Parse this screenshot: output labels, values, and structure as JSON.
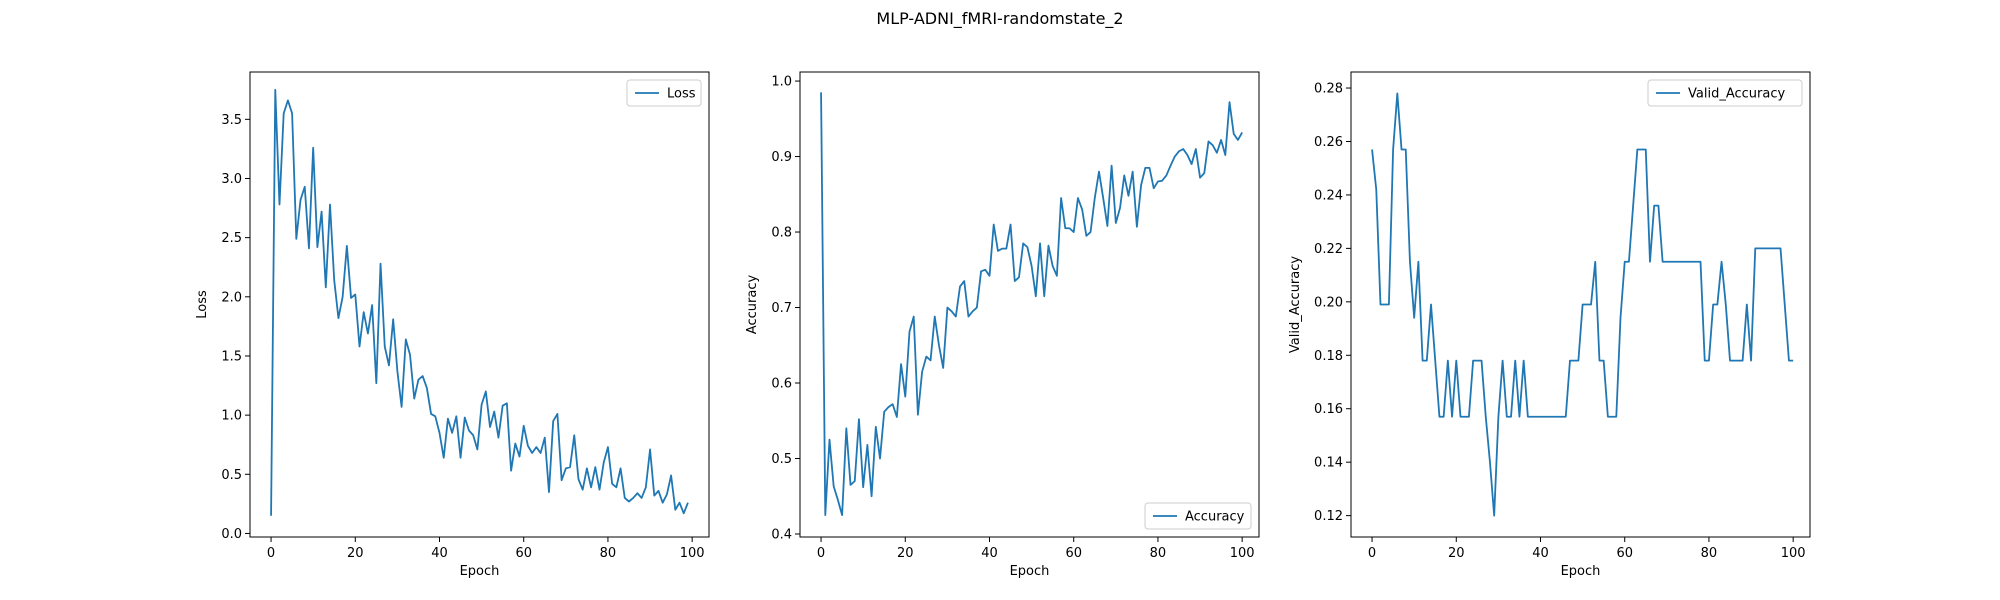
{
  "figure": {
    "title": "MLP-ADNI_fMRI-randomstate_2"
  },
  "chart_data": [
    {
      "type": "line",
      "xlabel": "Epoch",
      "ylabel": "Loss",
      "xlim": [
        -5,
        104
      ],
      "ylim": [
        -0.03,
        3.9
      ],
      "xticks": [
        0,
        20,
        40,
        60,
        80,
        100
      ],
      "yticks": [
        0.0,
        0.5,
        1.0,
        1.5,
        2.0,
        2.5,
        3.0,
        3.5
      ],
      "yticklabels": [
        "0.0",
        "0.5",
        "1.0",
        "1.5",
        "2.0",
        "2.5",
        "3.0",
        "3.5"
      ],
      "legend": "top-right",
      "color": "#1f77b4",
      "series": [
        {
          "name": "Loss",
          "values": [
            0.15,
            3.75,
            2.78,
            3.55,
            3.66,
            3.55,
            2.49,
            2.82,
            2.93,
            2.41,
            3.26,
            2.42,
            2.72,
            2.08,
            2.78,
            2.14,
            1.82,
            2.0,
            2.43,
            1.99,
            2.02,
            1.58,
            1.87,
            1.69,
            1.93,
            1.27,
            2.28,
            1.58,
            1.42,
            1.81,
            1.37,
            1.07,
            1.64,
            1.51,
            1.14,
            1.3,
            1.33,
            1.23,
            1.01,
            0.99,
            0.85,
            0.64,
            0.97,
            0.85,
            0.99,
            0.64,
            0.98,
            0.87,
            0.83,
            0.71,
            1.09,
            1.2,
            0.9,
            1.03,
            0.81,
            1.08,
            1.1,
            0.53,
            0.76,
            0.65,
            0.91,
            0.74,
            0.68,
            0.73,
            0.68,
            0.81,
            0.35,
            0.95,
            1.01,
            0.45,
            0.55,
            0.56,
            0.83,
            0.46,
            0.37,
            0.55,
            0.39,
            0.56,
            0.37,
            0.6,
            0.73,
            0.42,
            0.39,
            0.55,
            0.3,
            0.27,
            0.3,
            0.34,
            0.3,
            0.39,
            0.71,
            0.32,
            0.36,
            0.26,
            0.33,
            0.49,
            0.2,
            0.26,
            0.17,
            0.26
          ]
        }
      ]
    },
    {
      "type": "line",
      "xlabel": "Epoch",
      "ylabel": "Accuracy",
      "xlim": [
        -5,
        104
      ],
      "ylim": [
        0.396,
        1.012
      ],
      "xticks": [
        0,
        20,
        40,
        60,
        80,
        100
      ],
      "yticks": [
        0.4,
        0.5,
        0.6,
        0.7,
        0.8,
        0.9,
        1.0
      ],
      "yticklabels": [
        "0.4",
        "0.5",
        "0.6",
        "0.7",
        "0.8",
        "0.9",
        "1.0"
      ],
      "legend": "bottom-right",
      "color": "#1f77b4",
      "series": [
        {
          "name": "Accuracy",
          "values": [
            0.985,
            0.425,
            0.525,
            0.463,
            0.445,
            0.425,
            0.54,
            0.465,
            0.47,
            0.552,
            0.462,
            0.518,
            0.45,
            0.542,
            0.5,
            0.562,
            0.568,
            0.572,
            0.555,
            0.625,
            0.582,
            0.668,
            0.688,
            0.558,
            0.615,
            0.635,
            0.63,
            0.688,
            0.65,
            0.62,
            0.7,
            0.695,
            0.688,
            0.728,
            0.735,
            0.688,
            0.695,
            0.7,
            0.748,
            0.75,
            0.742,
            0.81,
            0.775,
            0.778,
            0.778,
            0.81,
            0.735,
            0.74,
            0.785,
            0.78,
            0.755,
            0.715,
            0.785,
            0.715,
            0.782,
            0.755,
            0.742,
            0.845,
            0.805,
            0.805,
            0.8,
            0.845,
            0.83,
            0.795,
            0.8,
            0.845,
            0.88,
            0.845,
            0.808,
            0.888,
            0.812,
            0.832,
            0.875,
            0.848,
            0.88,
            0.807,
            0.862,
            0.885,
            0.885,
            0.858,
            0.867,
            0.868,
            0.875,
            0.888,
            0.9,
            0.907,
            0.91,
            0.902,
            0.89,
            0.91,
            0.872,
            0.878,
            0.92,
            0.915,
            0.905,
            0.922,
            0.902,
            0.972,
            0.93,
            0.922,
            0.932
          ]
        }
      ]
    },
    {
      "type": "line",
      "xlabel": "Epoch",
      "ylabel": "Valid_Accuracy",
      "xlim": [
        -5,
        104
      ],
      "ylim": [
        0.112,
        0.286
      ],
      "xticks": [
        0,
        20,
        40,
        60,
        80,
        100
      ],
      "yticks": [
        0.12,
        0.14,
        0.16,
        0.18,
        0.2,
        0.22,
        0.24,
        0.26,
        0.28
      ],
      "yticklabels": [
        "0.12",
        "0.14",
        "0.16",
        "0.18",
        "0.20",
        "0.22",
        "0.24",
        "0.26",
        "0.28"
      ],
      "legend": "top-right",
      "color": "#1f77b4",
      "series": [
        {
          "name": "Valid_Accuracy",
          "values": [
            0.257,
            0.242,
            0.199,
            0.199,
            0.199,
            0.257,
            0.278,
            0.257,
            0.257,
            0.215,
            0.194,
            0.215,
            0.178,
            0.178,
            0.199,
            0.178,
            0.157,
            0.157,
            0.178,
            0.157,
            0.178,
            0.157,
            0.157,
            0.157,
            0.178,
            0.178,
            0.178,
            0.157,
            0.14,
            0.12,
            0.157,
            0.178,
            0.157,
            0.157,
            0.178,
            0.157,
            0.178,
            0.157,
            0.157,
            0.157,
            0.157,
            0.157,
            0.157,
            0.157,
            0.157,
            0.157,
            0.157,
            0.178,
            0.178,
            0.178,
            0.199,
            0.199,
            0.199,
            0.215,
            0.178,
            0.178,
            0.157,
            0.157,
            0.157,
            0.194,
            0.215,
            0.215,
            0.236,
            0.257,
            0.257,
            0.257,
            0.215,
            0.236,
            0.236,
            0.215,
            0.215,
            0.215,
            0.215,
            0.215,
            0.215,
            0.215,
            0.215,
            0.215,
            0.215,
            0.178,
            0.178,
            0.199,
            0.199,
            0.215,
            0.199,
            0.178,
            0.178,
            0.178,
            0.178,
            0.199,
            0.178,
            0.22,
            0.22,
            0.22,
            0.22,
            0.22,
            0.22,
            0.22,
            0.199,
            0.178,
            0.178
          ]
        }
      ]
    }
  ]
}
